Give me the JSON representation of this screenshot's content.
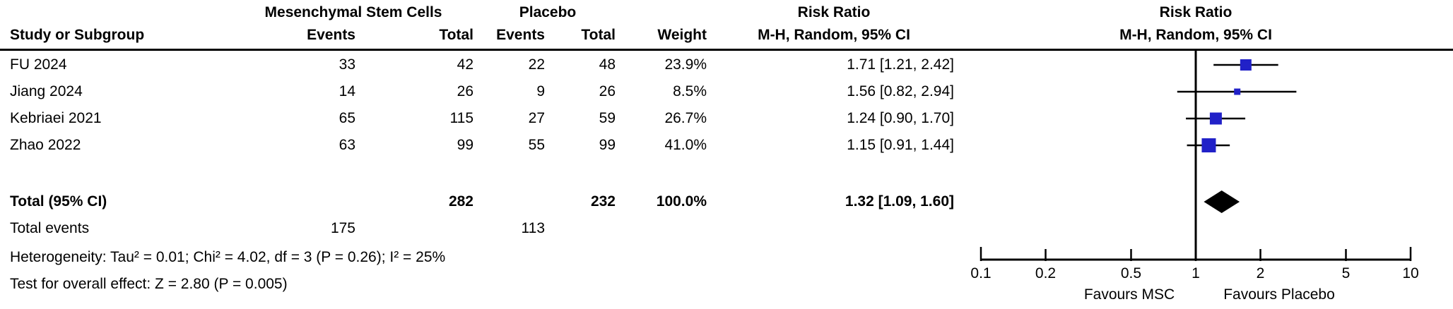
{
  "figure": {
    "group_headers": {
      "msc": "Mesenchymal Stem Cells",
      "placebo": "Placebo",
      "risk_ratio_left": "Risk Ratio",
      "risk_ratio_right": "Risk Ratio"
    },
    "col_headers": {
      "study": "Study or Subgroup",
      "msc_events": "Events",
      "msc_total": "Total",
      "placebo_events": "Events",
      "placebo_total": "Total",
      "weight": "Weight",
      "mh_ci_left": "M-H, Random, 95% CI",
      "mh_ci_right": "M-H, Random, 95% CI"
    },
    "rows": [
      {
        "study": "FU 2024",
        "msc_events": "33",
        "msc_total": "42",
        "pl_events": "22",
        "pl_total": "48",
        "weight": "23.9%",
        "rr_text": "1.71 [1.21, 2.42]"
      },
      {
        "study": "Jiang 2024",
        "msc_events": "14",
        "msc_total": "26",
        "pl_events": "9",
        "pl_total": "26",
        "weight": "8.5%",
        "rr_text": "1.56 [0.82, 2.94]"
      },
      {
        "study": "Kebriaei 2021",
        "msc_events": "65",
        "msc_total": "115",
        "pl_events": "27",
        "pl_total": "59",
        "weight": "26.7%",
        "rr_text": "1.24 [0.90, 1.70]"
      },
      {
        "study": "Zhao 2022",
        "msc_events": "63",
        "msc_total": "99",
        "pl_events": "55",
        "pl_total": "99",
        "weight": "41.0%",
        "rr_text": "1.15 [0.91, 1.44]"
      }
    ],
    "total_row": {
      "label": "Total (95% CI)",
      "msc_total": "282",
      "pl_total": "232",
      "weight": "100.0%",
      "rr_text": "1.32 [1.09, 1.60]"
    },
    "total_events_row": {
      "label": "Total events",
      "msc_events": "175",
      "pl_events": "113"
    },
    "heterogeneity": "Heterogeneity: Tau² = 0.01; Chi² = 4.02, df = 3 (P = 0.26); I² = 25%",
    "overall_effect": "Test for overall effect: Z = 2.80 (P = 0.005)"
  },
  "chart_data": {
    "type": "forest",
    "effect_measure": "Risk Ratio",
    "method": "M-H, Random, 95% CI",
    "x_scale": "log",
    "x_range": [
      0.1,
      10
    ],
    "x_ticks": [
      0.1,
      0.2,
      0.5,
      1,
      2,
      5,
      10
    ],
    "null_line": 1,
    "studies": [
      {
        "name": "FU 2024",
        "rr": 1.71,
        "ci_low": 1.21,
        "ci_high": 2.42,
        "weight_pct": 23.9
      },
      {
        "name": "Jiang 2024",
        "rr": 1.56,
        "ci_low": 0.82,
        "ci_high": 2.94,
        "weight_pct": 8.5
      },
      {
        "name": "Kebriaei 2021",
        "rr": 1.24,
        "ci_low": 0.9,
        "ci_high": 1.7,
        "weight_pct": 26.7
      },
      {
        "name": "Zhao 2022",
        "rr": 1.15,
        "ci_low": 0.91,
        "ci_high": 1.44,
        "weight_pct": 41.0
      }
    ],
    "total": {
      "rr": 1.32,
      "ci_low": 1.09,
      "ci_high": 1.6
    },
    "axis_footer_labels": {
      "left": "Favours MSC",
      "right": "Favours Placebo"
    },
    "grid": false,
    "legend_position": "none"
  },
  "colors": {
    "marker_blue": "#2121c8",
    "line_black": "#000000",
    "background": "#ffffff"
  }
}
